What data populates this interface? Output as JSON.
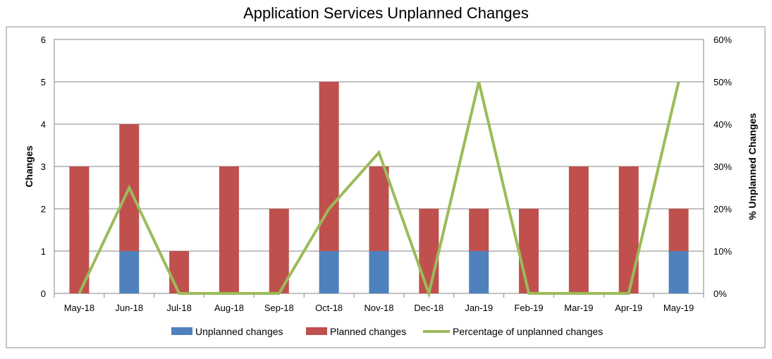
{
  "chart_data": {
    "type": "bar",
    "title": "Application Services Unplanned Changes",
    "categories": [
      "May-18",
      "Jun-18",
      "Jul-18",
      "Aug-18",
      "Sep-18",
      "Oct-18",
      "Nov-18",
      "Dec-18",
      "Jan-19",
      "Feb-19",
      "Mar-19",
      "Apr-19",
      "May-19"
    ],
    "series": [
      {
        "name": "Unplanned changes",
        "kind": "bar-stacked",
        "axis": "left",
        "color": "#4F81BD",
        "values": [
          0,
          1,
          0,
          0,
          0,
          1,
          1,
          0,
          1,
          0,
          0,
          0,
          1
        ]
      },
      {
        "name": "Planned changes",
        "kind": "bar-stacked",
        "axis": "left",
        "color": "#C0504D",
        "values": [
          3,
          3,
          1,
          3,
          2,
          4,
          2,
          2,
          1,
          2,
          3,
          3,
          1
        ]
      },
      {
        "name": "Percentage of unplanned changes",
        "kind": "line",
        "axis": "right",
        "color": "#9BBB59",
        "values": [
          0,
          25,
          0,
          0,
          0,
          20,
          33.3,
          0,
          50,
          0,
          0,
          0,
          50
        ]
      }
    ],
    "ylabel": "Changes",
    "ylim": [
      0,
      6
    ],
    "yticks": [
      "0",
      "1",
      "2",
      "3",
      "4",
      "5",
      "6"
    ],
    "y2label": "% Unplanned Changes",
    "y2lim": [
      0,
      60
    ],
    "y2ticks": [
      "0%",
      "10%",
      "20%",
      "30%",
      "40%",
      "50%",
      "60%"
    ],
    "grid": true,
    "legend_position": "bottom"
  }
}
